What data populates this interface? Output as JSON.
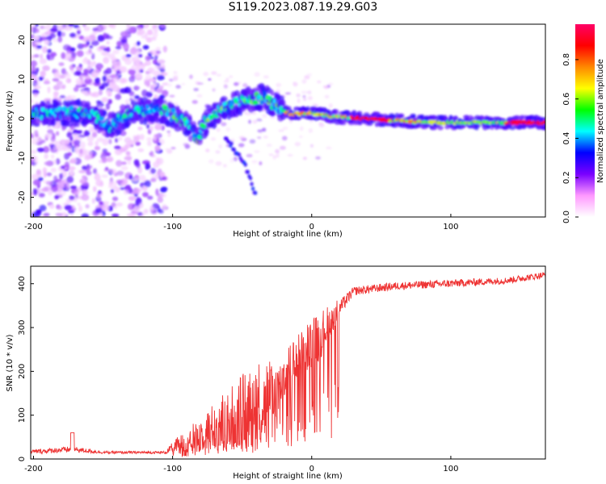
{
  "figure": {
    "title": "S119.2023.087.19.29.G03"
  },
  "chart_data": [
    {
      "type": "heatmap",
      "xlabel": "Height of straight line (km)",
      "ylabel": "Frequency (Hz)",
      "xlim": [
        -202,
        168
      ],
      "ylim": [
        -25,
        24
      ],
      "xticks": [
        -200,
        -100,
        0,
        100
      ],
      "yticks": [
        20,
        10,
        0,
        -10,
        -20
      ],
      "colorbar": {
        "label": "Normalized spectral amplitude",
        "ticks": [
          "0.0",
          "0.2",
          "0.4",
          "0.6",
          "0.8"
        ],
        "range": [
          0,
          0.98
        ],
        "colors": [
          "#ffffff",
          "#ff66ff",
          "#6a00ff",
          "#0000ff",
          "#00ffff",
          "#00ff00",
          "#ffff00",
          "#ff8800",
          "#ff0000",
          "#ff0066"
        ]
      },
      "ridge_main": [
        {
          "x": -200,
          "f": 1.5
        },
        {
          "x": -180,
          "f": 1.5
        },
        {
          "x": -160,
          "f": 1.5
        },
        {
          "x": -145,
          "f": -2
        },
        {
          "x": -130,
          "f": 1.5
        },
        {
          "x": -110,
          "f": 2.5
        },
        {
          "x": -100,
          "f": 1
        },
        {
          "x": -90,
          "f": -1
        },
        {
          "x": -82,
          "f": -5
        },
        {
          "x": -75,
          "f": 0
        },
        {
          "x": -60,
          "f": 3
        },
        {
          "x": -45,
          "f": 5
        },
        {
          "x": -35,
          "f": 5.5
        },
        {
          "x": -25,
          "f": 3
        },
        {
          "x": -15,
          "f": 1
        },
        {
          "x": 0,
          "f": 1.5
        },
        {
          "x": 15,
          "f": 0.5
        },
        {
          "x": 40,
          "f": 0
        },
        {
          "x": 60,
          "f": -0.5
        },
        {
          "x": 90,
          "f": -1
        },
        {
          "x": 120,
          "f": -1
        },
        {
          "x": 168,
          "f": -1
        }
      ],
      "ridge_branch": [
        {
          "x": -62,
          "f": -5
        },
        {
          "x": -55,
          "f": -8
        },
        {
          "x": -45,
          "f": -14
        },
        {
          "x": -40,
          "f": -20
        }
      ]
    },
    {
      "type": "line",
      "xlabel": "Height of straight line (km)",
      "ylabel": "SNR (10 * v/v)",
      "xlim": [
        -202,
        168
      ],
      "ylim": [
        0,
        440
      ],
      "xticks": [
        -200,
        -100,
        0,
        100
      ],
      "yticks": [
        0,
        100,
        200,
        300,
        400
      ],
      "color": "#ee3333",
      "envelope": [
        {
          "x": -202,
          "base": 15,
          "amp": 10
        },
        {
          "x": -172,
          "base": 20,
          "amp": 14
        },
        {
          "x": -150,
          "base": 14,
          "amp": 6
        },
        {
          "x": -105,
          "base": 14,
          "amp": 6
        },
        {
          "x": -98,
          "base": 25,
          "amp": 25
        },
        {
          "x": -80,
          "base": 45,
          "amp": 60
        },
        {
          "x": -60,
          "base": 70,
          "amp": 110
        },
        {
          "x": -40,
          "base": 95,
          "amp": 150
        },
        {
          "x": -25,
          "base": 140,
          "amp": 100
        },
        {
          "x": -10,
          "base": 220,
          "amp": 80
        },
        {
          "x": 5,
          "base": 260,
          "amp": 90
        },
        {
          "x": 18,
          "base": 330,
          "amp": 40
        },
        {
          "x": 30,
          "base": 380,
          "amp": 20
        },
        {
          "x": 60,
          "base": 392,
          "amp": 18
        },
        {
          "x": 100,
          "base": 398,
          "amp": 18
        },
        {
          "x": 140,
          "base": 405,
          "amp": 15
        },
        {
          "x": 168,
          "base": 418,
          "amp": 15
        }
      ]
    }
  ]
}
